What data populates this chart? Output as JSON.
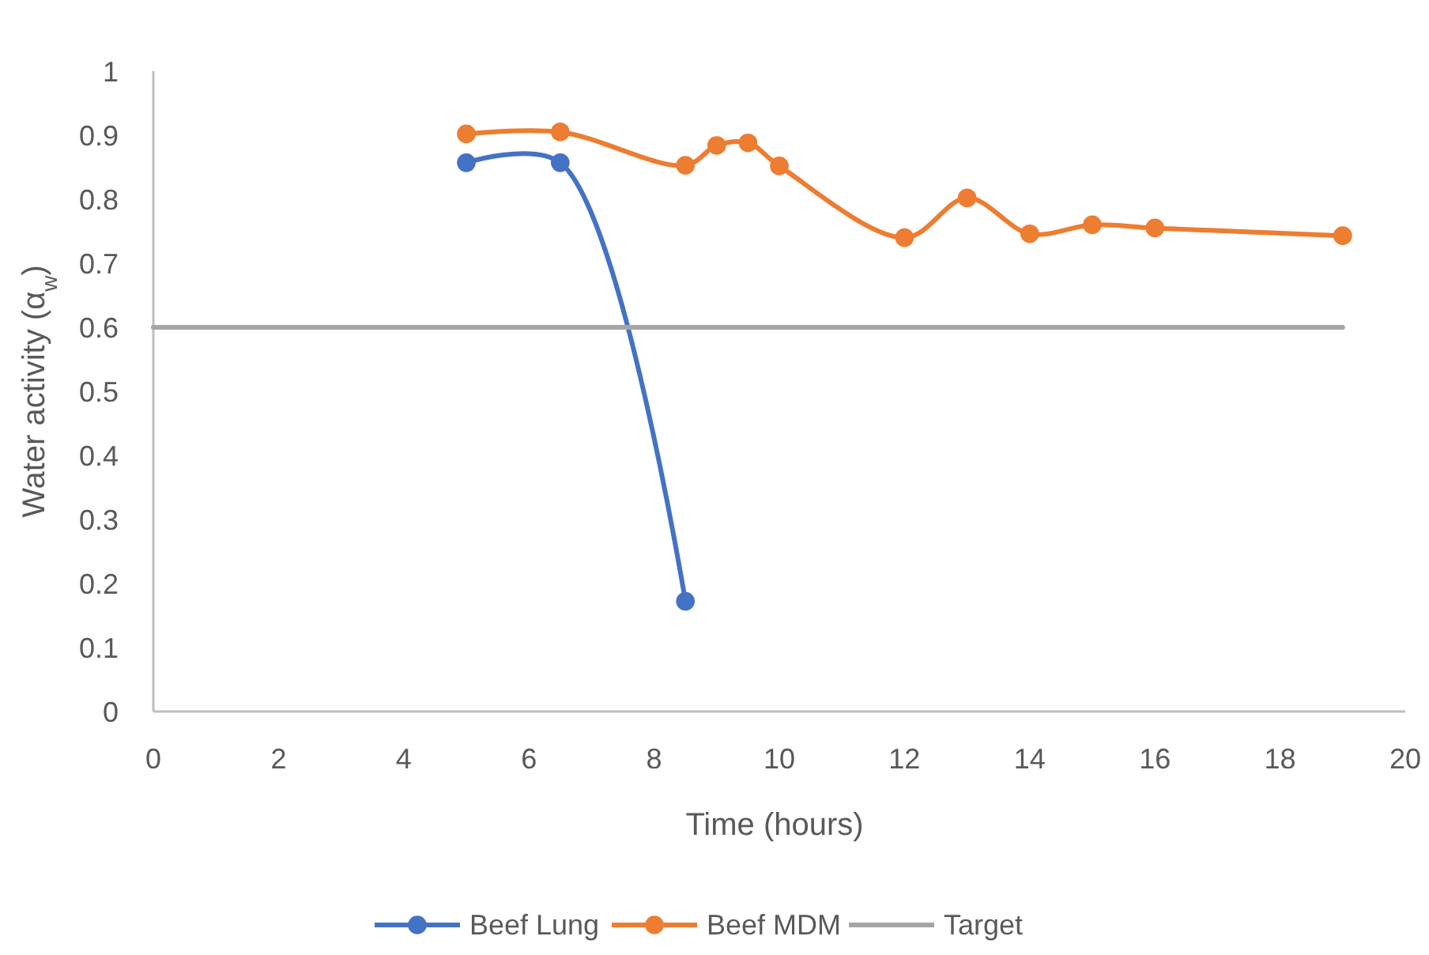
{
  "chart_data": {
    "type": "line",
    "xlabel": "Time (hours)",
    "ylabel": "Water activity (α$_{w}$)",
    "xlim": [
      0,
      20
    ],
    "xticks": [
      0,
      2,
      4,
      6,
      8,
      10,
      12,
      14,
      16,
      18,
      20
    ],
    "ylim": [
      0,
      1
    ],
    "yticks": [
      0,
      0.1,
      0.2,
      0.3,
      0.4,
      0.5,
      0.6,
      0.7,
      0.8,
      0.9,
      1
    ],
    "grid": false,
    "legend": "bottom",
    "marker": "circle",
    "series": [
      {
        "name": "Beef Lung",
        "color": "#4472c4",
        "x": [
          5,
          6.5,
          8.5
        ],
        "values": [
          0.857,
          0.857,
          0.172
        ]
      },
      {
        "name": "Beef MDM",
        "color": "#ed7d31",
        "x": [
          5,
          6.5,
          8.5,
          9,
          9.5,
          10,
          12,
          13,
          14,
          15,
          16,
          19
        ],
        "values": [
          0.902,
          0.905,
          0.853,
          0.884,
          0.888,
          0.852,
          0.74,
          0.802,
          0.746,
          0.76,
          0.755,
          0.743
        ]
      },
      {
        "name": "Target",
        "color": "#a5a5a5",
        "x": [
          0,
          19
        ],
        "values": [
          0.6,
          0.6
        ],
        "marker": "none"
      }
    ]
  }
}
